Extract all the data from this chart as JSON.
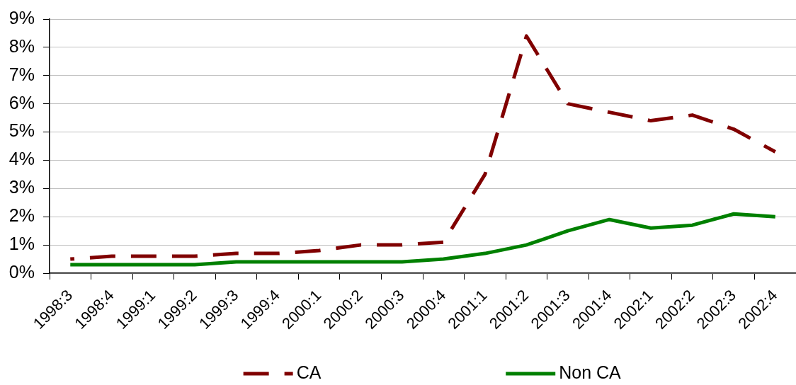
{
  "chart_data": {
    "type": "line",
    "categories": [
      "1998:3",
      "1998:4",
      "1999:1",
      "1999:2",
      "1999:3",
      "1999:4",
      "2000:1",
      "2000:2",
      "2000:3",
      "2000:4",
      "2001:1",
      "2001:2",
      "2001:3",
      "2001:4",
      "2002:1",
      "2002:2",
      "2002:3",
      "2002:4"
    ],
    "series": [
      {
        "name": "CA",
        "color": "#800000",
        "line_style": "dashed",
        "values": [
          0.5,
          0.6,
          0.6,
          0.6,
          0.7,
          0.7,
          0.8,
          1.0,
          1.0,
          1.1,
          3.5,
          8.4,
          6.0,
          5.7,
          5.4,
          5.6,
          5.1,
          4.3
        ]
      },
      {
        "name": "Non CA",
        "color": "#008000",
        "line_style": "solid",
        "values": [
          0.3,
          0.3,
          0.3,
          0.3,
          0.4,
          0.4,
          0.4,
          0.4,
          0.4,
          0.5,
          0.7,
          1.0,
          1.5,
          1.9,
          1.6,
          1.7,
          2.1,
          2.0
        ]
      }
    ],
    "ylim": [
      0,
      9
    ],
    "yticks": [
      {
        "value": 0,
        "label": "0%"
      },
      {
        "value": 1,
        "label": "1%"
      },
      {
        "value": 2,
        "label": "2%"
      },
      {
        "value": 3,
        "label": "3%"
      },
      {
        "value": 4,
        "label": "4%"
      },
      {
        "value": 5,
        "label": "5%"
      },
      {
        "value": 6,
        "label": "6%"
      },
      {
        "value": 7,
        "label": "7%"
      },
      {
        "value": 8,
        "label": "8%"
      },
      {
        "value": 9,
        "label": "9%"
      }
    ],
    "grid": "y",
    "legend": "bottom",
    "marker": "none"
  }
}
